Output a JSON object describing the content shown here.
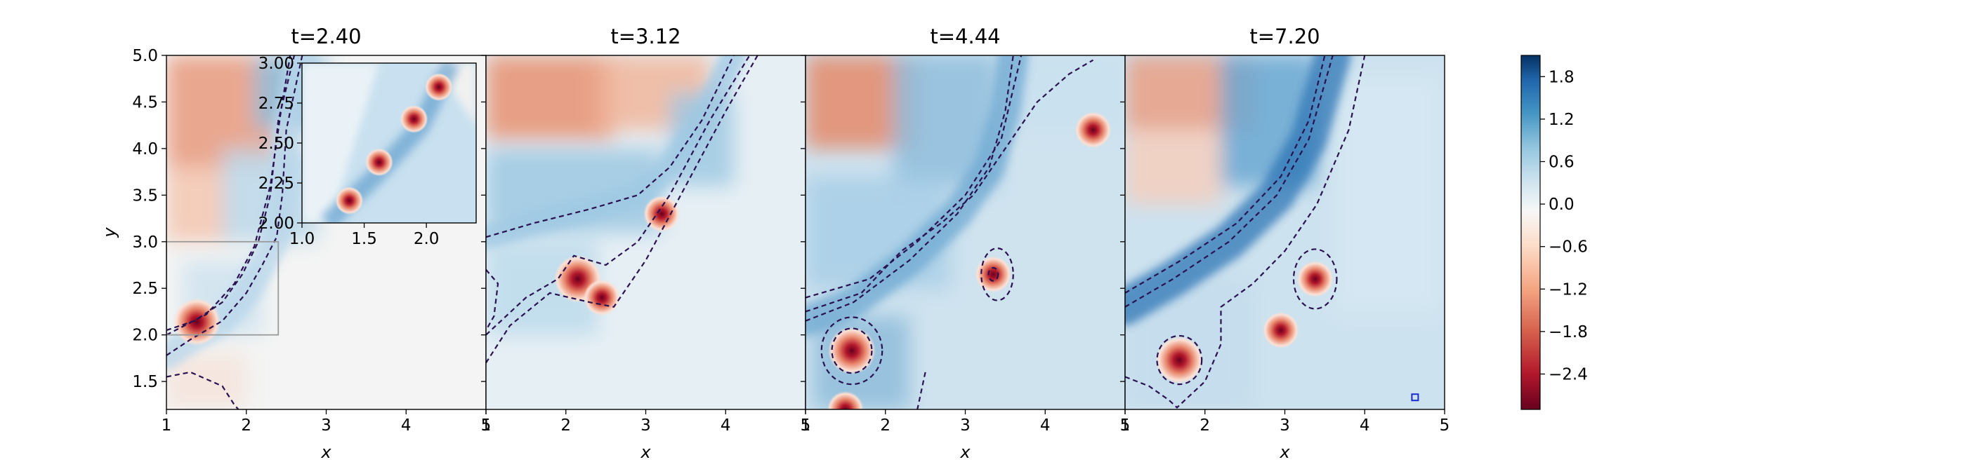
{
  "chart_data": [
    {
      "type": "heatmap",
      "title": "t=2.40",
      "xlabel": "x",
      "ylabel": "y",
      "xlim": [
        1,
        5
      ],
      "ylim": [
        1.2,
        5.0
      ],
      "xticks": [
        "1",
        "2",
        "3",
        "4",
        "5"
      ],
      "yticks": [
        "1.5",
        "2.0",
        "2.5",
        "3.0",
        "3.5",
        "4.0",
        "4.5",
        "5.0"
      ],
      "xtick_values": [
        1,
        2,
        3,
        4,
        5
      ],
      "ytick_values": [
        1.5,
        2.0,
        2.5,
        3.0,
        3.5,
        4.0,
        4.5,
        5.0
      ],
      "zoom_box": {
        "x": [
          1.0,
          2.4
        ],
        "y": [
          2.0,
          3.0
        ]
      },
      "vortices": [
        {
          "x": 1.38,
          "y": 2.14,
          "sign": -1
        }
      ],
      "contours": [
        {
          "points": [
            [
              1.0,
              1.78
            ],
            [
              1.3,
              1.95
            ],
            [
              1.7,
              2.15
            ],
            [
              2.0,
              2.45
            ],
            [
              2.2,
              2.75
            ],
            [
              2.38,
              3.05
            ],
            [
              2.45,
              3.5
            ],
            [
              2.5,
              4.2
            ],
            [
              2.7,
              5.0
            ]
          ]
        },
        {
          "points": [
            [
              1.0,
              2.05
            ],
            [
              1.35,
              2.15
            ],
            [
              1.7,
              2.35
            ],
            [
              1.95,
              2.65
            ],
            [
              2.15,
              3.0
            ],
            [
              2.3,
              3.5
            ],
            [
              2.4,
              4.3
            ],
            [
              2.6,
              5.0
            ]
          ]
        },
        {
          "points": [
            [
              1.0,
              2.0
            ],
            [
              1.5,
              2.22
            ],
            [
              1.85,
              2.55
            ],
            [
              2.1,
              2.95
            ],
            [
              2.3,
              3.6
            ],
            [
              2.45,
              4.5
            ],
            [
              2.55,
              5.0
            ]
          ]
        },
        {
          "points": [
            [
              1.0,
              1.55
            ],
            [
              1.3,
              1.6
            ],
            [
              1.7,
              1.45
            ],
            [
              1.85,
              1.25
            ],
            [
              1.9,
              1.2
            ]
          ]
        }
      ],
      "inset": {
        "xlim": [
          1.0,
          2.4
        ],
        "ylim": [
          2.0,
          3.0
        ],
        "xticks": [
          "1.0",
          "1.5",
          "2.0"
        ],
        "yticks": [
          "2.00",
          "2.25",
          "2.50",
          "2.75",
          "3.00"
        ],
        "xtick_values": [
          1.0,
          1.5,
          2.0
        ],
        "ytick_values": [
          2.0,
          2.25,
          2.5,
          2.75,
          3.0
        ],
        "vortices": [
          {
            "x": 1.38,
            "y": 2.14
          },
          {
            "x": 1.62,
            "y": 2.38
          },
          {
            "x": 1.9,
            "y": 2.65
          },
          {
            "x": 2.1,
            "y": 2.85
          }
        ]
      }
    },
    {
      "type": "heatmap",
      "title": "t=3.12",
      "xlabel": "x",
      "xlim": [
        1,
        5
      ],
      "ylim": [
        1.2,
        5.0
      ],
      "xticks": [
        "1",
        "2",
        "3",
        "4",
        "5"
      ],
      "xtick_values": [
        1,
        2,
        3,
        4,
        5
      ],
      "vortices": [
        {
          "x": 2.15,
          "y": 2.6,
          "sign": -1
        },
        {
          "x": 3.2,
          "y": 3.3,
          "sign": -1
        },
        {
          "x": 2.45,
          "y": 2.4,
          "sign": -1
        }
      ],
      "contours": [
        {
          "points": [
            [
              1.0,
              3.05
            ],
            [
              1.6,
              3.2
            ],
            [
              2.3,
              3.35
            ],
            [
              2.9,
              3.5
            ],
            [
              3.3,
              3.8
            ],
            [
              3.7,
              4.3
            ],
            [
              4.1,
              5.0
            ]
          ]
        },
        {
          "points": [
            [
              1.0,
              2.0
            ],
            [
              1.5,
              2.4
            ],
            [
              1.9,
              2.6
            ],
            [
              2.1,
              2.85
            ],
            [
              2.5,
              2.75
            ],
            [
              2.9,
              3.0
            ],
            [
              3.3,
              3.5
            ],
            [
              3.8,
              4.3
            ],
            [
              4.3,
              5.0
            ]
          ]
        },
        {
          "points": [
            [
              1.0,
              1.7
            ],
            [
              1.3,
              2.1
            ],
            [
              1.8,
              2.45
            ],
            [
              2.3,
              2.35
            ],
            [
              2.6,
              2.3
            ],
            [
              3.0,
              2.8
            ],
            [
              3.5,
              3.6
            ],
            [
              4.0,
              4.4
            ],
            [
              4.4,
              5.0
            ]
          ]
        },
        {
          "points": [
            [
              1.0,
              2.7
            ],
            [
              1.15,
              2.55
            ],
            [
              1.1,
              2.2
            ],
            [
              1.0,
              2.05
            ]
          ]
        }
      ]
    },
    {
      "type": "heatmap",
      "title": "t=4.44",
      "xlabel": "x",
      "xlim": [
        1,
        5
      ],
      "ylim": [
        1.2,
        5.0
      ],
      "xticks": [
        "1",
        "2",
        "3",
        "4",
        "5"
      ],
      "xtick_values": [
        1,
        2,
        3,
        4,
        5
      ],
      "vortices": [
        {
          "x": 1.58,
          "y": 1.83,
          "sign": -1
        },
        {
          "x": 3.35,
          "y": 2.65,
          "sign": -1
        },
        {
          "x": 4.6,
          "y": 4.2,
          "sign": -1
        },
        {
          "x": 1.5,
          "y": 1.2,
          "sign": -1
        }
      ],
      "contours": [
        {
          "points": [
            [
              1.0,
              2.15
            ],
            [
              1.6,
              2.35
            ],
            [
              2.3,
              2.8
            ],
            [
              2.9,
              3.3
            ],
            [
              3.3,
              3.8
            ],
            [
              3.5,
              4.4
            ],
            [
              3.6,
              5.0
            ]
          ]
        },
        {
          "points": [
            [
              1.0,
              2.4
            ],
            [
              1.8,
              2.6
            ],
            [
              2.4,
              3.0
            ],
            [
              3.0,
              3.5
            ],
            [
              3.45,
              4.1
            ],
            [
              3.7,
              5.0
            ]
          ]
        },
        {
          "points": [
            [
              1.0,
              2.25
            ],
            [
              1.7,
              2.45
            ],
            [
              2.2,
              2.9
            ],
            [
              2.7,
              3.2
            ],
            [
              3.1,
              3.5
            ],
            [
              3.5,
              4.0
            ],
            [
              3.9,
              4.5
            ],
            [
              4.3,
              4.8
            ],
            [
              4.6,
              4.95
            ]
          ]
        },
        {
          "points": [
            [
              2.5,
              1.6
            ],
            [
              2.45,
              1.4
            ],
            [
              2.4,
              1.2
            ]
          ]
        }
      ],
      "closed_contours": [
        {
          "cx": 1.58,
          "cy": 1.83,
          "rx": 0.38,
          "ry": 0.36
        },
        {
          "cx": 1.58,
          "cy": 1.83,
          "rx": 0.25,
          "ry": 0.24
        },
        {
          "cx": 3.4,
          "cy": 2.65,
          "rx": 0.2,
          "ry": 0.28
        },
        {
          "cx": 3.35,
          "cy": 2.65,
          "rx": 0.06,
          "ry": 0.07
        }
      ]
    },
    {
      "type": "heatmap",
      "title": "t=7.20",
      "xlabel": "x",
      "xlim": [
        1,
        5
      ],
      "ylim": [
        1.2,
        5.0
      ],
      "xticks": [
        "1",
        "2",
        "3",
        "4",
        "5"
      ],
      "xtick_values": [
        1,
        2,
        3,
        4,
        5
      ],
      "vortices": [
        {
          "x": 1.68,
          "y": 1.73,
          "sign": -1
        },
        {
          "x": 3.38,
          "y": 2.6,
          "sign": -1
        },
        {
          "x": 2.95,
          "y": 2.05,
          "sign": -1
        }
      ],
      "contours": [
        {
          "points": [
            [
              1.0,
              2.3
            ],
            [
              1.6,
              2.6
            ],
            [
              2.3,
              3.0
            ],
            [
              2.9,
              3.5
            ],
            [
              3.3,
              4.1
            ],
            [
              3.5,
              4.7
            ],
            [
              3.6,
              5.0
            ]
          ]
        },
        {
          "points": [
            [
              1.0,
              2.45
            ],
            [
              1.7,
              2.8
            ],
            [
              2.4,
              3.2
            ],
            [
              2.95,
              3.7
            ],
            [
              3.3,
              4.3
            ],
            [
              3.5,
              5.0
            ]
          ]
        },
        {
          "points": [
            [
              1.0,
              1.55
            ],
            [
              1.3,
              1.45
            ],
            [
              1.55,
              1.3
            ],
            [
              1.65,
              1.22
            ],
            [
              2.0,
              1.5
            ],
            [
              2.2,
              1.9
            ],
            [
              2.2,
              2.3
            ],
            [
              2.6,
              2.55
            ],
            [
              3.0,
              2.9
            ],
            [
              3.4,
              3.4
            ],
            [
              3.8,
              4.2
            ],
            [
              4.0,
              5.0
            ]
          ]
        }
      ],
      "closed_contours": [
        {
          "cx": 1.68,
          "cy": 1.73,
          "rx": 0.28,
          "ry": 0.26
        },
        {
          "cx": 3.38,
          "cy": 2.6,
          "rx": 0.27,
          "ry": 0.32
        }
      ],
      "marker_box": {
        "x": 4.63,
        "y": 1.33
      }
    }
  ],
  "colorbar": {
    "ticks": [
      "1.8",
      "1.2",
      "0.6",
      "0.0",
      "−0.6",
      "−1.2",
      "−1.8",
      "−2.4"
    ],
    "tick_values": [
      1.8,
      1.2,
      0.6,
      0.0,
      -0.6,
      -1.2,
      -1.8,
      -2.4
    ],
    "range": [
      -2.9,
      2.1
    ],
    "colormap": "RdBu",
    "stops": [
      "#67001f",
      "#b2182b",
      "#d6604d",
      "#f4a582",
      "#fddbc7",
      "#f7f7f7",
      "#d1e5f0",
      "#92c5de",
      "#4393c3",
      "#2166ac",
      "#053061"
    ]
  },
  "colors": {
    "contour": "#2a1150",
    "marker": "#1a2ad0",
    "zoom_box": "#9a9a9a"
  }
}
